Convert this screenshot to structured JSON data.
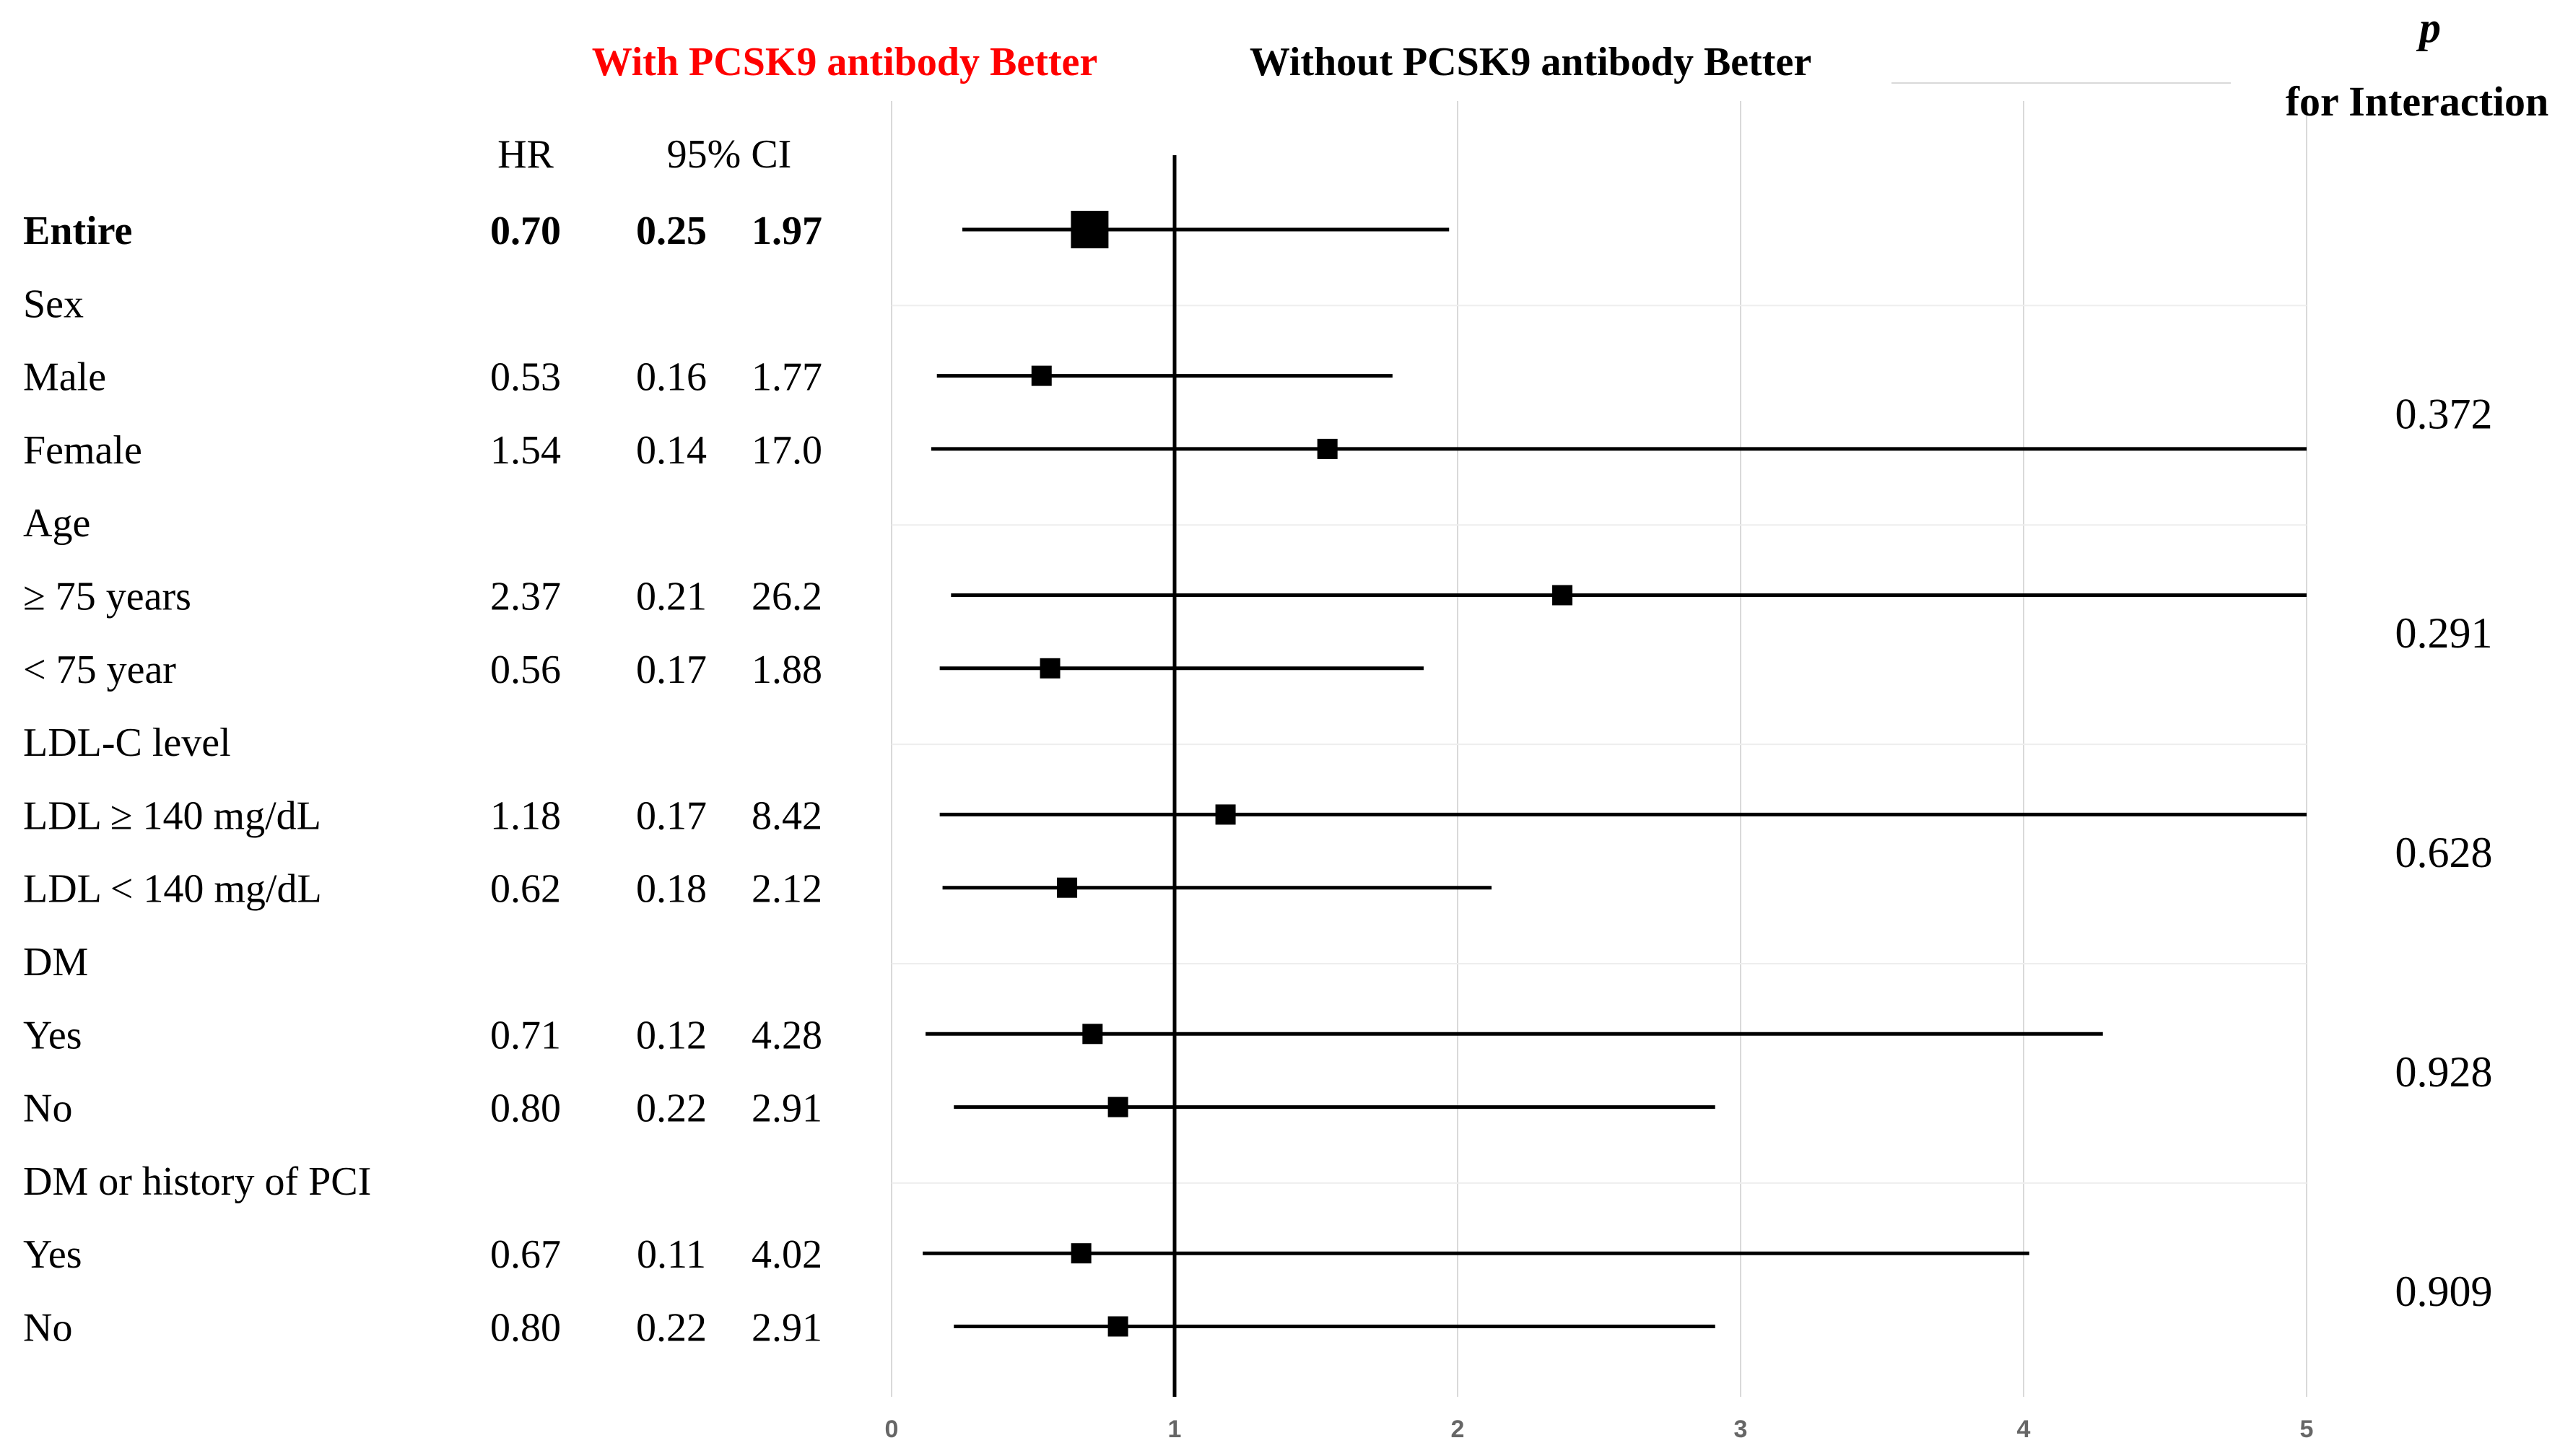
{
  "chart_data": {
    "type": "forest",
    "header_left": "With PCSK9 antibody Better",
    "header_right": "Without PCSK9 antibody Better",
    "p_header_symbol": "p",
    "p_header_text": "for Interaction",
    "col_hr": "HR",
    "col_ci": "95% CI",
    "xlim": [
      0,
      5
    ],
    "xticks": [
      "0",
      "1",
      "2",
      "3",
      "4",
      "5"
    ],
    "reference_line": 1,
    "colors": {
      "left_header": "#ff0000",
      "text": "#000000",
      "grid": "#d9d9d9"
    },
    "rows": [
      {
        "label": "Entire",
        "hr": "0.70",
        "lo": "0.25",
        "hi": "1.97",
        "bold": true,
        "v": 0.7,
        "l": 0.25,
        "h": 1.97,
        "big": true
      },
      {
        "label": "Sex"
      },
      {
        "label": "Male",
        "hr": "0.53",
        "lo": "0.16",
        "hi": "1.77",
        "v": 0.53,
        "l": 0.16,
        "h": 1.77
      },
      {
        "label": "Female",
        "hr": "1.54",
        "lo": "0.14",
        "hi": "17.0",
        "v": 1.54,
        "l": 0.14,
        "h": 17.0
      },
      {
        "label": "Age"
      },
      {
        "label": "≥ 75 years",
        "hr": "2.37",
        "lo": "0.21",
        "hi": "26.2",
        "v": 2.37,
        "l": 0.21,
        "h": 26.2
      },
      {
        "label": "< 75 year",
        "hr": "0.56",
        "lo": "0.17",
        "hi": "1.88",
        "v": 0.56,
        "l": 0.17,
        "h": 1.88
      },
      {
        "label": "LDL-C level"
      },
      {
        "label": "LDL ≥ 140 mg/dL",
        "hr": "1.18",
        "lo": "0.17",
        "hi": "8.42",
        "v": 1.18,
        "l": 0.17,
        "h": 8.42
      },
      {
        "label": "LDL < 140 mg/dL",
        "hr": "0.62",
        "lo": "0.18",
        "hi": "2.12",
        "v": 0.62,
        "l": 0.18,
        "h": 2.12
      },
      {
        "label": "DM"
      },
      {
        "label": "Yes",
        "hr": "0.71",
        "lo": "0.12",
        "hi": "4.28",
        "v": 0.71,
        "l": 0.12,
        "h": 4.28
      },
      {
        "label": "No",
        "hr": "0.80",
        "lo": "0.22",
        "hi": "2.91",
        "v": 0.8,
        "l": 0.22,
        "h": 2.91
      },
      {
        "label": "DM or history of PCI"
      },
      {
        "label": "Yes",
        "hr": "0.67",
        "lo": "0.11",
        "hi": "4.02",
        "v": 0.67,
        "l": 0.11,
        "h": 4.02
      },
      {
        "label": "No",
        "hr": "0.80",
        "lo": "0.22",
        "hi": "2.91",
        "v": 0.8,
        "l": 0.22,
        "h": 2.91
      }
    ],
    "p_values": [
      {
        "value": "0.372",
        "rows": [
          2,
          3
        ]
      },
      {
        "value": "0.291",
        "rows": [
          5,
          6
        ]
      },
      {
        "value": "0.628",
        "rows": [
          8,
          9
        ]
      },
      {
        "value": "0.928",
        "rows": [
          11,
          12
        ]
      },
      {
        "value": "0.909",
        "rows": [
          14,
          15
        ]
      }
    ]
  }
}
